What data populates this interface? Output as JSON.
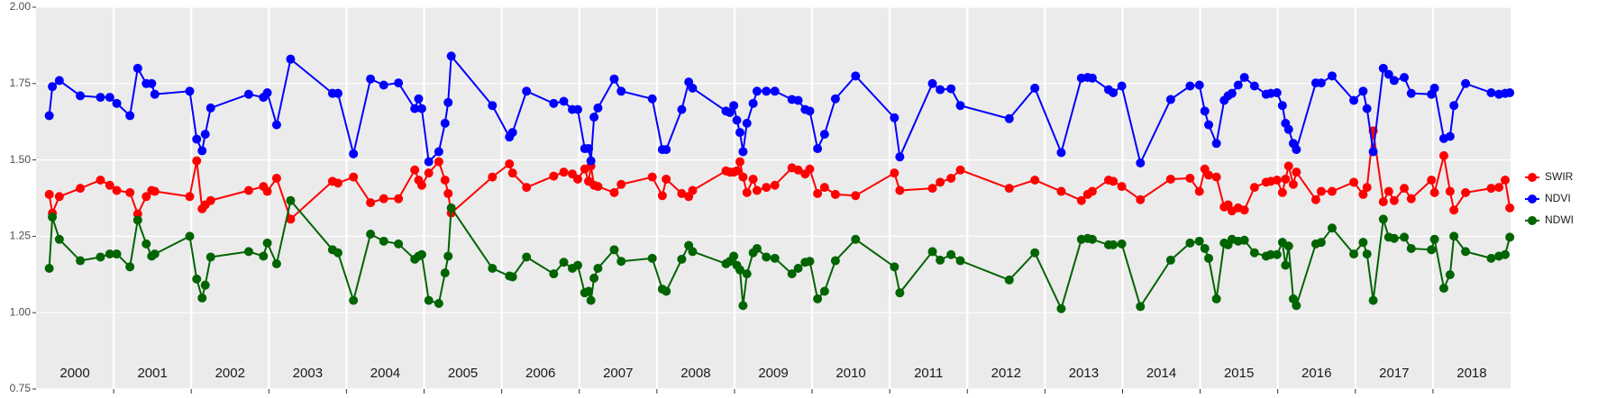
{
  "chart_data": {
    "type": "line",
    "xlim": [
      2000,
      2019
    ],
    "xticks": [
      2001,
      2002,
      2003,
      2004,
      2005,
      2006,
      2007,
      2008,
      2009,
      2010,
      2011,
      2012,
      2013,
      2014,
      2015,
      2016,
      2017,
      2018
    ],
    "year_labels": [
      "2000",
      "2001",
      "2002",
      "2003",
      "2004",
      "2005",
      "2006",
      "2007",
      "2008",
      "2009",
      "2010",
      "2011",
      "2012",
      "2013",
      "2014",
      "2015",
      "2016",
      "2017",
      "2018"
    ],
    "ylim": [
      0.75,
      2.0
    ],
    "yticks": [
      {
        "value": 0.75,
        "label": "0.75"
      },
      {
        "value": 1.0,
        "label": "1.00"
      },
      {
        "value": 1.25,
        "label": "1.25"
      },
      {
        "value": 1.5,
        "label": "1.50"
      },
      {
        "value": 1.75,
        "label": "1.75"
      },
      {
        "value": 2.0,
        "label": "2.00"
      }
    ],
    "grid": true,
    "legend": "right",
    "x": [
      2000.17,
      2000.21,
      2000.3,
      2000.57,
      2000.83,
      2000.95,
      2001.04,
      2001.21,
      2001.31,
      2001.42,
      2001.49,
      2001.53,
      2001.98,
      2002.07,
      2002.14,
      2002.18,
      2002.25,
      2002.74,
      2002.93,
      2002.98,
      2003.1,
      2003.28,
      2003.82,
      2003.89,
      2004.09,
      2004.31,
      2004.48,
      2004.67,
      2004.88,
      2004.93,
      2004.97,
      2005.06,
      2005.19,
      2005.27,
      2005.31,
      2005.35,
      2005.88,
      2006.1,
      2006.14,
      2006.32,
      2006.67,
      2006.8,
      2006.91,
      2006.98,
      2007.07,
      2007.12,
      2007.15,
      2007.19,
      2007.24,
      2007.45,
      2007.54,
      2007.94,
      2008.07,
      2008.12,
      2008.32,
      2008.41,
      2008.46,
      2008.89,
      2008.94,
      2008.99,
      2009.03,
      2009.07,
      2009.11,
      2009.16,
      2009.24,
      2009.29,
      2009.41,
      2009.52,
      2009.74,
      2009.82,
      2009.91,
      2009.97,
      2010.07,
      2010.16,
      2010.3,
      2010.56,
      2011.06,
      2011.13,
      2011.55,
      2011.65,
      2011.79,
      2011.91,
      2012.54,
      2012.87,
      2013.21,
      2013.47,
      2013.55,
      2013.61,
      2013.82,
      2013.88,
      2013.99,
      2014.23,
      2014.62,
      2014.87,
      2014.99,
      2015.06,
      2015.11,
      2015.21,
      2015.31,
      2015.36,
      2015.41,
      2015.49,
      2015.57,
      2015.7,
      2015.85,
      2015.91,
      2015.99,
      2016.06,
      2016.1,
      2016.14,
      2016.2,
      2016.24,
      2016.49,
      2016.56,
      2016.7,
      2016.98,
      2017.1,
      2017.15,
      2017.23,
      2017.36,
      2017.43,
      2017.5,
      2017.63,
      2017.72,
      2017.98,
      2018.02,
      2018.14,
      2018.22,
      2018.27,
      2018.42,
      2018.75,
      2018.85,
      2018.93,
      2018.99
    ],
    "series": [
      {
        "name": "SWIR",
        "color": "#ff0000",
        "values": [
          1.387,
          1.326,
          1.38,
          1.407,
          1.434,
          1.417,
          1.4,
          1.393,
          1.323,
          1.38,
          1.4,
          1.397,
          1.38,
          1.497,
          1.34,
          1.353,
          1.367,
          1.4,
          1.413,
          1.397,
          1.44,
          1.306,
          1.43,
          1.424,
          1.444,
          1.36,
          1.373,
          1.373,
          1.467,
          1.434,
          1.417,
          1.457,
          1.494,
          1.434,
          1.39,
          1.326,
          1.444,
          1.487,
          1.457,
          1.41,
          1.447,
          1.46,
          1.454,
          1.437,
          1.47,
          1.43,
          1.48,
          1.417,
          1.413,
          1.393,
          1.42,
          1.444,
          1.383,
          1.437,
          1.39,
          1.38,
          1.4,
          1.464,
          1.46,
          1.46,
          1.464,
          1.494,
          1.444,
          1.393,
          1.437,
          1.4,
          1.41,
          1.417,
          1.474,
          1.467,
          1.454,
          1.47,
          1.39,
          1.41,
          1.387,
          1.383,
          1.457,
          1.4,
          1.407,
          1.427,
          1.44,
          1.467,
          1.407,
          1.434,
          1.397,
          1.367,
          1.387,
          1.397,
          1.434,
          1.43,
          1.413,
          1.37,
          1.437,
          1.44,
          1.397,
          1.47,
          1.45,
          1.444,
          1.346,
          1.353,
          1.333,
          1.343,
          1.336,
          1.41,
          1.427,
          1.43,
          1.434,
          1.393,
          1.437,
          1.48,
          1.42,
          1.46,
          1.37,
          1.397,
          1.397,
          1.427,
          1.387,
          1.41,
          1.595,
          1.363,
          1.397,
          1.367,
          1.407,
          1.373,
          1.434,
          1.393,
          1.514,
          1.397,
          1.336,
          1.393,
          1.407,
          1.41,
          1.434,
          1.343
        ]
      },
      {
        "name": "NDVI",
        "color": "#0000ff",
        "values": [
          1.645,
          1.74,
          1.76,
          1.71,
          1.705,
          1.705,
          1.685,
          1.645,
          1.8,
          1.75,
          1.75,
          1.715,
          1.725,
          1.568,
          1.53,
          1.584,
          1.67,
          1.715,
          1.705,
          1.72,
          1.615,
          1.83,
          1.718,
          1.718,
          1.52,
          1.765,
          1.745,
          1.752,
          1.668,
          1.7,
          1.668,
          1.494,
          1.527,
          1.62,
          1.688,
          1.84,
          1.678,
          1.575,
          1.59,
          1.725,
          1.685,
          1.692,
          1.665,
          1.665,
          1.537,
          1.537,
          1.497,
          1.64,
          1.67,
          1.765,
          1.725,
          1.7,
          1.534,
          1.534,
          1.665,
          1.755,
          1.735,
          1.66,
          1.655,
          1.678,
          1.63,
          1.59,
          1.527,
          1.62,
          1.685,
          1.725,
          1.725,
          1.725,
          1.698,
          1.695,
          1.665,
          1.66,
          1.537,
          1.584,
          1.7,
          1.775,
          1.638,
          1.51,
          1.75,
          1.73,
          1.733,
          1.678,
          1.635,
          1.735,
          1.524,
          1.768,
          1.77,
          1.768,
          1.73,
          1.72,
          1.742,
          1.49,
          1.698,
          1.742,
          1.745,
          1.66,
          1.615,
          1.554,
          1.695,
          1.71,
          1.718,
          1.745,
          1.77,
          1.742,
          1.715,
          1.718,
          1.72,
          1.678,
          1.62,
          1.6,
          1.554,
          1.534,
          1.752,
          1.752,
          1.775,
          1.695,
          1.725,
          1.668,
          1.527,
          1.8,
          1.78,
          1.76,
          1.77,
          1.718,
          1.715,
          1.735,
          1.57,
          1.577,
          1.678,
          1.75,
          1.72,
          1.715,
          1.718,
          1.72
        ]
      },
      {
        "name": "NDWI",
        "color": "#006400",
        "values": [
          1.145,
          1.313,
          1.24,
          1.17,
          1.182,
          1.192,
          1.192,
          1.15,
          1.303,
          1.225,
          1.185,
          1.192,
          1.25,
          1.11,
          1.048,
          1.09,
          1.182,
          1.2,
          1.185,
          1.228,
          1.16,
          1.367,
          1.206,
          1.196,
          1.04,
          1.257,
          1.234,
          1.225,
          1.175,
          1.185,
          1.19,
          1.04,
          1.03,
          1.13,
          1.185,
          1.343,
          1.145,
          1.12,
          1.117,
          1.182,
          1.127,
          1.165,
          1.145,
          1.155,
          1.065,
          1.07,
          1.04,
          1.113,
          1.145,
          1.206,
          1.168,
          1.178,
          1.077,
          1.07,
          1.175,
          1.22,
          1.2,
          1.16,
          1.168,
          1.185,
          1.155,
          1.14,
          1.023,
          1.127,
          1.196,
          1.21,
          1.182,
          1.178,
          1.127,
          1.145,
          1.165,
          1.168,
          1.045,
          1.07,
          1.17,
          1.24,
          1.15,
          1.065,
          1.2,
          1.172,
          1.19,
          1.17,
          1.107,
          1.196,
          1.013,
          1.24,
          1.243,
          1.24,
          1.222,
          1.222,
          1.225,
          1.02,
          1.172,
          1.228,
          1.234,
          1.21,
          1.178,
          1.045,
          1.228,
          1.222,
          1.24,
          1.234,
          1.237,
          1.196,
          1.185,
          1.19,
          1.19,
          1.23,
          1.155,
          1.218,
          1.045,
          1.023,
          1.225,
          1.23,
          1.277,
          1.192,
          1.23,
          1.192,
          1.04,
          1.306,
          1.247,
          1.243,
          1.247,
          1.21,
          1.206,
          1.24,
          1.08,
          1.124,
          1.25,
          1.2,
          1.178,
          1.185,
          1.19,
          1.247
        ]
      }
    ]
  }
}
